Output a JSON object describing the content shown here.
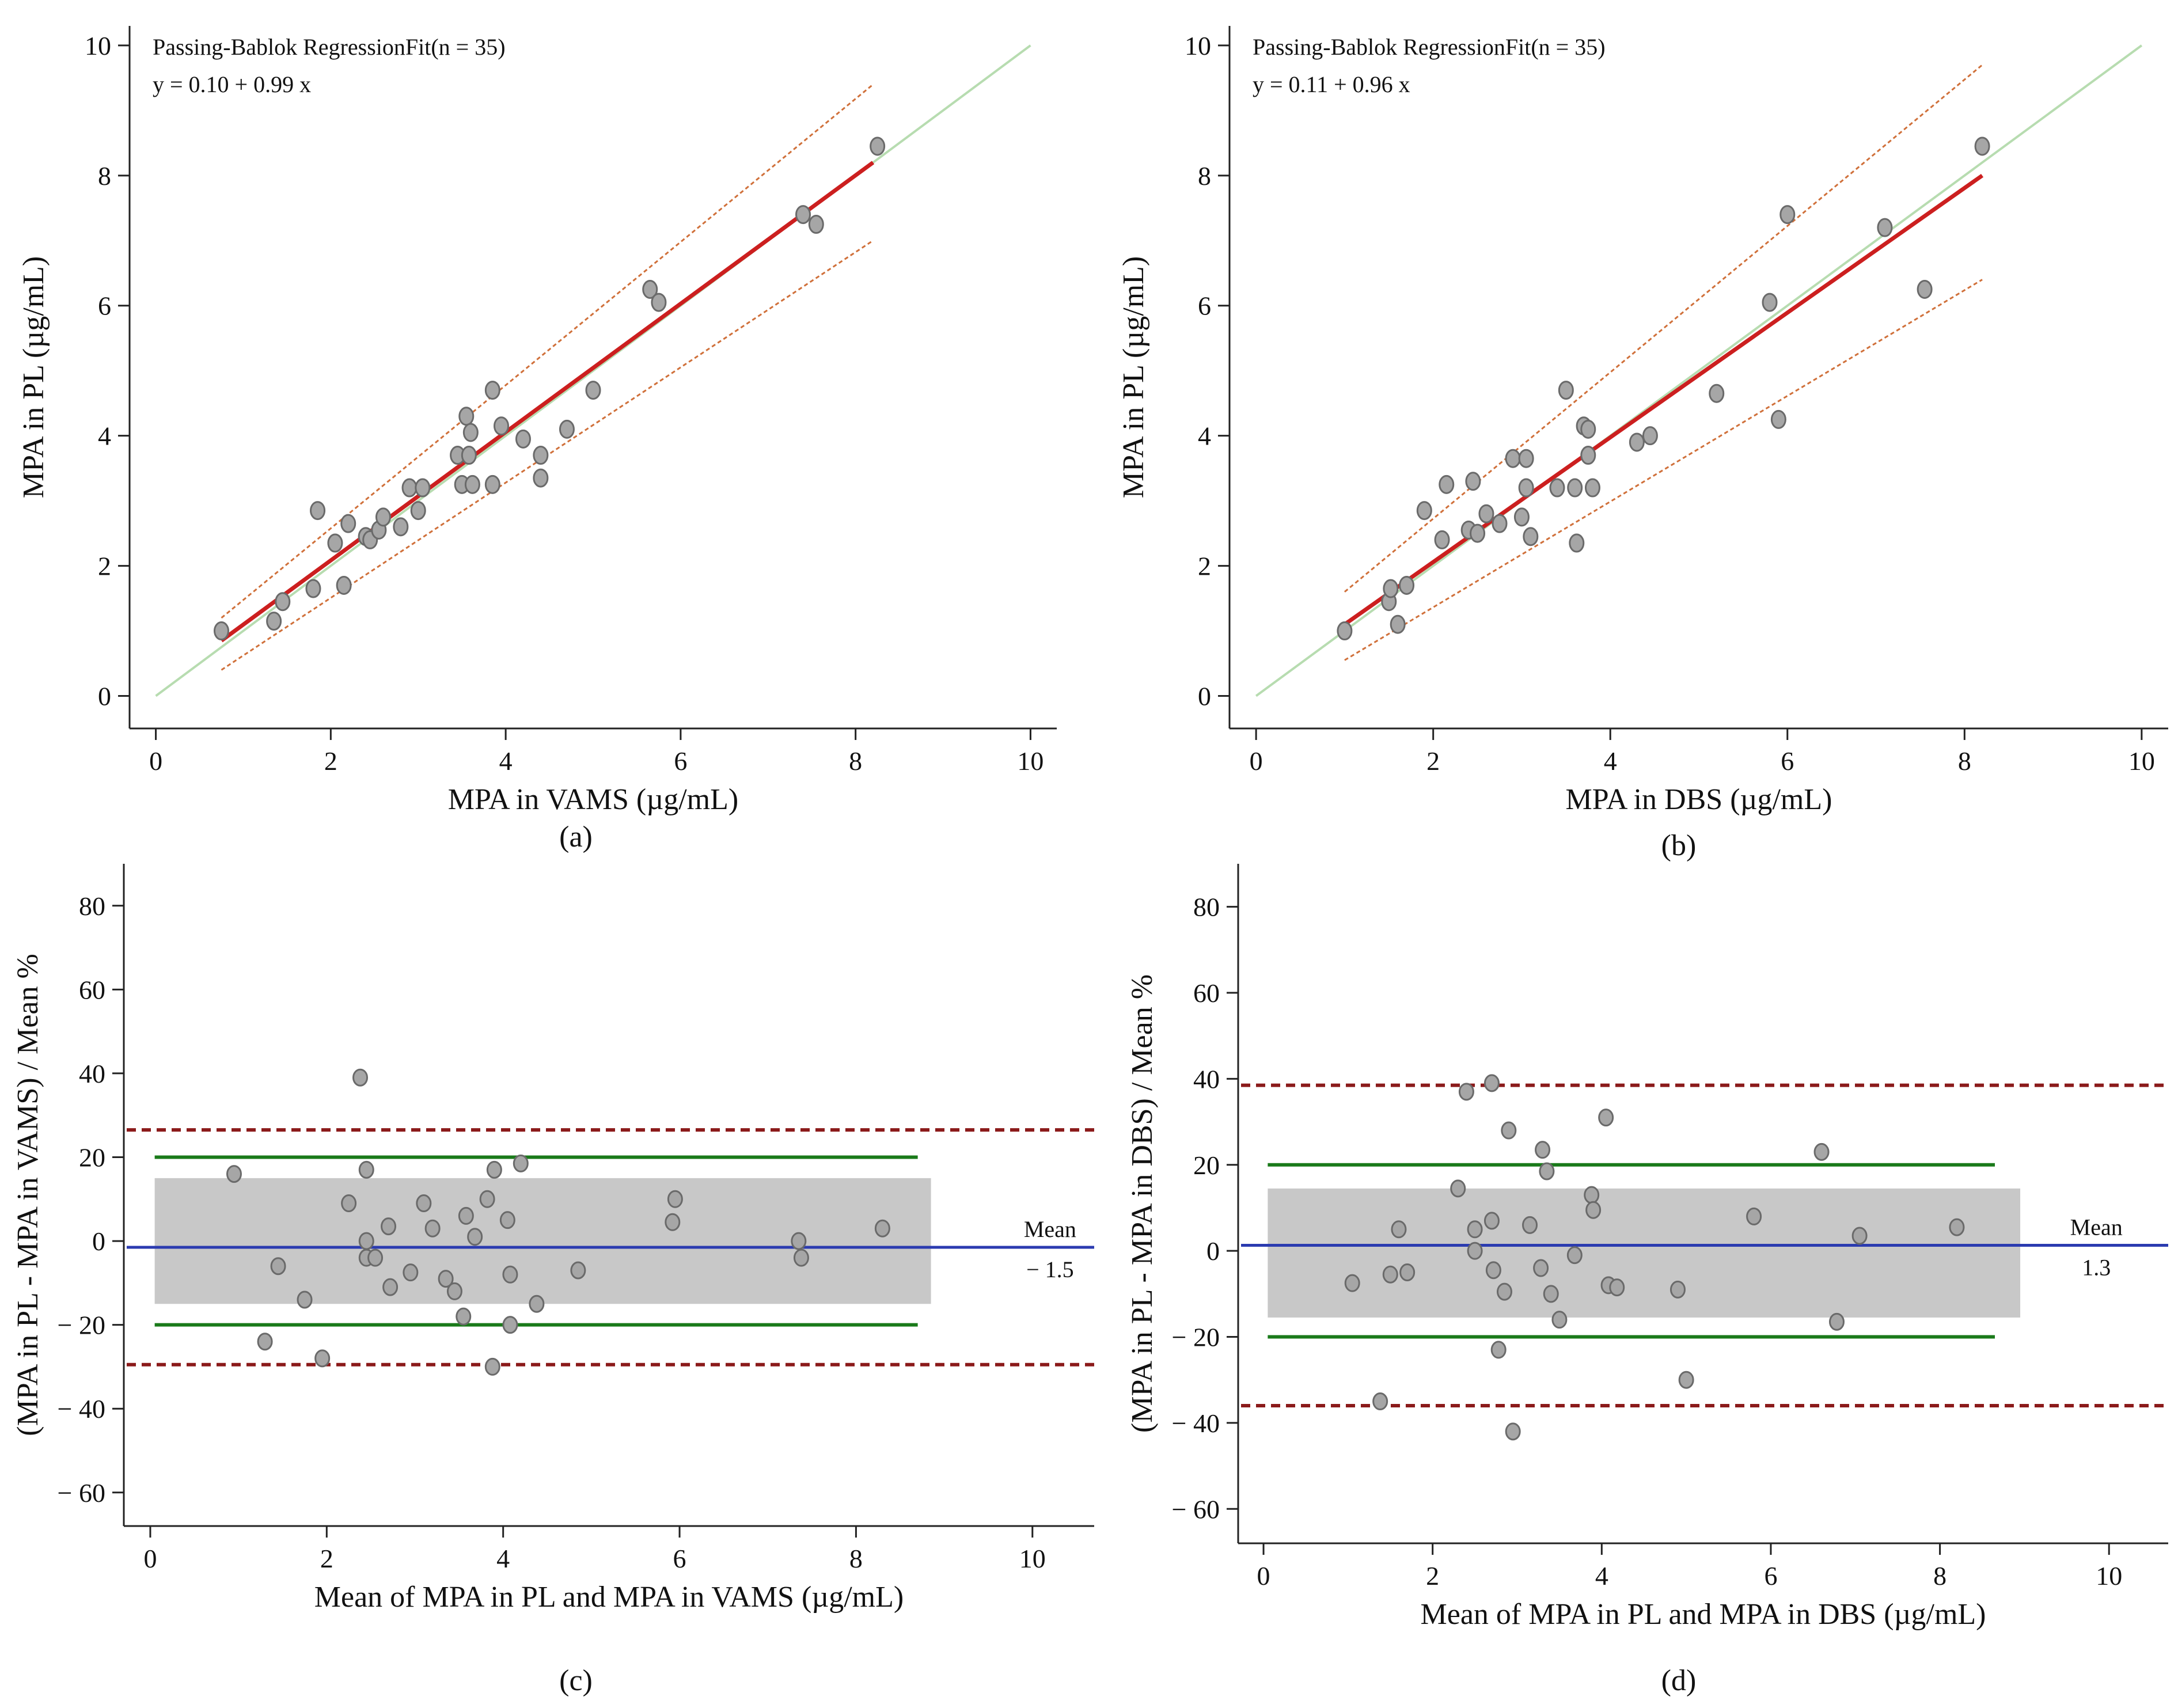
{
  "colors": {
    "identity": "#b7dcb0",
    "fit": "#cc1f1f",
    "ci": "#d0703a",
    "point_fill": "#a6a6a6",
    "point_stroke": "#6a6a6a",
    "shade": "#c8c8c8",
    "mean_line": "#2b3bb0",
    "green_line": "#1a7a1a",
    "loa_line": "#8b1a1a",
    "axis": "#222222"
  },
  "chart_data": [
    {
      "type": "scatter",
      "panel_label": "(a)",
      "annotation": [
        "Passing-Bablok RegressionFit(n = 35)",
        "y = 0.10   +  0.99   x"
      ],
      "xlabel": "MPA in  VAMS (µg/mL)",
      "ylabel": "MPA in  PL (µg/mL)",
      "xlim": [
        -0.3,
        10.3
      ],
      "ylim": [
        -0.5,
        10.3
      ],
      "xticks": [
        0,
        2,
        4,
        6,
        8,
        10
      ],
      "yticks": [
        0,
        2,
        4,
        6,
        8,
        10
      ],
      "xtick_labels": [
        "0",
        "2",
        "4",
        "6",
        "8",
        "10"
      ],
      "ytick_labels": [
        "0",
        "2",
        "4",
        "6",
        "8",
        "10"
      ],
      "identity_line": [
        [
          0,
          0
        ],
        [
          10,
          10
        ]
      ],
      "fit_line": [
        [
          0.75,
          0.85
        ],
        [
          8.2,
          8.2
        ]
      ],
      "ci_upper": [
        [
          0.75,
          1.2
        ],
        [
          8.2,
          9.4
        ]
      ],
      "ci_lower": [
        [
          0.75,
          0.4
        ],
        [
          8.2,
          7.0
        ]
      ],
      "points": [
        [
          0.75,
          1.0
        ],
        [
          1.35,
          1.15
        ],
        [
          1.45,
          1.45
        ],
        [
          1.8,
          1.65
        ],
        [
          1.85,
          2.85
        ],
        [
          2.05,
          2.35
        ],
        [
          2.15,
          1.7
        ],
        [
          2.2,
          2.65
        ],
        [
          2.4,
          2.45
        ],
        [
          2.45,
          2.4
        ],
        [
          2.55,
          2.55
        ],
        [
          2.6,
          2.75
        ],
        [
          2.8,
          2.6
        ],
        [
          2.9,
          3.2
        ],
        [
          3.0,
          2.85
        ],
        [
          3.05,
          3.2
        ],
        [
          3.45,
          3.7
        ],
        [
          3.5,
          3.25
        ],
        [
          3.55,
          4.3
        ],
        [
          3.58,
          3.7
        ],
        [
          3.6,
          4.05
        ],
        [
          3.62,
          3.25
        ],
        [
          3.85,
          4.7
        ],
        [
          3.85,
          3.25
        ],
        [
          3.95,
          4.15
        ],
        [
          4.2,
          3.95
        ],
        [
          4.4,
          3.7
        ],
        [
          4.4,
          3.35
        ],
        [
          4.7,
          4.1
        ],
        [
          5.0,
          4.7
        ],
        [
          5.65,
          6.25
        ],
        [
          5.75,
          6.05
        ],
        [
          7.4,
          7.4
        ],
        [
          7.55,
          7.25
        ],
        [
          8.25,
          8.45
        ]
      ]
    },
    {
      "type": "scatter",
      "panel_label": "(b)",
      "annotation": [
        "Passing-Bablok RegressionFit(n = 35)",
        "y = 0.11   +  0.96   x"
      ],
      "xlabel": "MPA in  DBS (µg/mL)",
      "ylabel": "MPA in  PL (µg/mL)",
      "xlim": [
        -0.3,
        10.3
      ],
      "ylim": [
        -0.5,
        10.3
      ],
      "xticks": [
        0,
        2,
        4,
        6,
        8,
        10
      ],
      "yticks": [
        0,
        2,
        4,
        6,
        8,
        10
      ],
      "xtick_labels": [
        "0",
        "2",
        "4",
        "6",
        "8",
        "10"
      ],
      "ytick_labels": [
        "0",
        "2",
        "4",
        "6",
        "8",
        "10"
      ],
      "identity_line": [
        [
          0,
          0
        ],
        [
          10,
          10
        ]
      ],
      "fit_line": [
        [
          1.0,
          1.1
        ],
        [
          8.2,
          8.0
        ]
      ],
      "ci_upper": [
        [
          1.0,
          1.6
        ],
        [
          8.2,
          9.7
        ]
      ],
      "ci_lower": [
        [
          1.0,
          0.55
        ],
        [
          8.2,
          6.4
        ]
      ],
      "points": [
        [
          1.0,
          1.0
        ],
        [
          1.5,
          1.45
        ],
        [
          1.52,
          1.65
        ],
        [
          1.6,
          1.1
        ],
        [
          1.7,
          1.7
        ],
        [
          1.9,
          2.85
        ],
        [
          2.1,
          2.4
        ],
        [
          2.15,
          3.25
        ],
        [
          2.4,
          2.55
        ],
        [
          2.45,
          3.3
        ],
        [
          2.5,
          2.5
        ],
        [
          2.6,
          2.8
        ],
        [
          2.75,
          2.65
        ],
        [
          2.9,
          3.65
        ],
        [
          3.0,
          2.75
        ],
        [
          3.05,
          3.65
        ],
        [
          3.05,
          3.2
        ],
        [
          3.1,
          2.45
        ],
        [
          3.4,
          3.2
        ],
        [
          3.5,
          4.7
        ],
        [
          3.6,
          3.2
        ],
        [
          3.62,
          2.35
        ],
        [
          3.7,
          4.15
        ],
        [
          3.75,
          4.1
        ],
        [
          3.75,
          3.7
        ],
        [
          3.8,
          3.2
        ],
        [
          4.3,
          3.9
        ],
        [
          4.45,
          4.0
        ],
        [
          5.2,
          4.65
        ],
        [
          5.8,
          6.05
        ],
        [
          5.9,
          4.25
        ],
        [
          6.0,
          7.4
        ],
        [
          7.1,
          7.2
        ],
        [
          7.55,
          6.25
        ],
        [
          8.2,
          8.45
        ]
      ]
    },
    {
      "type": "scatter",
      "panel_label": "(c)",
      "xlabel": "Mean of MPA in PL and MPA in VAMS (µg/mL)",
      "ylabel": "(MPA in  PL - MPA in VAMS) / Mean %",
      "xlim": [
        -0.3,
        10.7
      ],
      "ylim": [
        -68,
        90
      ],
      "xticks": [
        0,
        2,
        4,
        6,
        8,
        10
      ],
      "yticks": [
        80,
        60,
        40,
        20,
        0,
        -20,
        -40,
        -60
      ],
      "xtick_labels": [
        "0",
        "2",
        "4",
        "6",
        "8",
        "10"
      ],
      "ytick_labels": [
        "80",
        "60",
        "40",
        "20",
        "0",
        "− 20",
        "− 40",
        "− 60"
      ],
      "mean_value": -1.5,
      "mean_label": "Mean",
      "mean_value_label": "− 1.5",
      "shaded_band": {
        "x": [
          0.05,
          8.85
        ],
        "y": [
          -15,
          15
        ]
      },
      "green_lines": {
        "x": [
          0.05,
          8.7
        ],
        "y": [
          20,
          -20
        ]
      },
      "loa_lines": [
        26.5,
        -29.5
      ],
      "points": [
        [
          0.95,
          16
        ],
        [
          1.45,
          -6
        ],
        [
          1.75,
          -14
        ],
        [
          1.95,
          -28
        ],
        [
          1.3,
          -24
        ],
        [
          2.25,
          9
        ],
        [
          2.38,
          39
        ],
        [
          2.45,
          17
        ],
        [
          2.45,
          0
        ],
        [
          2.45,
          -4
        ],
        [
          2.55,
          -4
        ],
        [
          2.7,
          3.5
        ],
        [
          2.72,
          -11
        ],
        [
          2.95,
          -7.5
        ],
        [
          3.1,
          9
        ],
        [
          3.2,
          3
        ],
        [
          3.35,
          -9
        ],
        [
          3.45,
          -12
        ],
        [
          3.55,
          -18
        ],
        [
          3.58,
          6
        ],
        [
          3.68,
          1
        ],
        [
          3.82,
          10
        ],
        [
          3.9,
          17
        ],
        [
          3.88,
          -30
        ],
        [
          4.05,
          5
        ],
        [
          4.08,
          -8
        ],
        [
          4.08,
          -20
        ],
        [
          4.2,
          18.5
        ],
        [
          4.38,
          -15
        ],
        [
          4.85,
          -7
        ],
        [
          5.95,
          10
        ],
        [
          5.92,
          4.5
        ],
        [
          7.35,
          0
        ],
        [
          7.38,
          -4
        ],
        [
          8.3,
          3
        ]
      ]
    },
    {
      "type": "scatter",
      "panel_label": "(d)",
      "xlabel": "Mean of MPA in PL and MPA in DBS (µg/mL)",
      "ylabel": "(MPA in  PL - MPA in DBS) / Mean %",
      "xlim": [
        -0.3,
        10.7
      ],
      "ylim": [
        -68,
        90
      ],
      "xticks": [
        0,
        2,
        4,
        6,
        8,
        10
      ],
      "yticks": [
        80,
        60,
        40,
        20,
        0,
        -20,
        -40,
        -60
      ],
      "xtick_labels": [
        "0",
        "2",
        "4",
        "6",
        "8",
        "10"
      ],
      "ytick_labels": [
        "80",
        "60",
        "40",
        "20",
        "0",
        "− 20",
        "− 40",
        "− 60"
      ],
      "mean_value": 1.3,
      "mean_label": "Mean",
      "mean_value_label": "1.3",
      "shaded_band": {
        "x": [
          0.05,
          8.95
        ],
        "y": [
          -15.5,
          14.5
        ]
      },
      "green_lines": {
        "x": [
          0.05,
          8.65
        ],
        "y": [
          20,
          -20
        ]
      },
      "loa_lines": [
        38.5,
        -36
      ],
      "points": [
        [
          1.05,
          -7.5
        ],
        [
          1.38,
          -35
        ],
        [
          1.5,
          -5.5
        ],
        [
          1.6,
          5
        ],
        [
          1.7,
          -5
        ],
        [
          2.3,
          14.5
        ],
        [
          2.4,
          37
        ],
        [
          2.5,
          5
        ],
        [
          2.5,
          0
        ],
        [
          2.7,
          39
        ],
        [
          2.7,
          7
        ],
        [
          2.72,
          -4.5
        ],
        [
          2.78,
          -23
        ],
        [
          2.85,
          -9.5
        ],
        [
          2.9,
          28
        ],
        [
          2.95,
          -42
        ],
        [
          3.15,
          6
        ],
        [
          3.28,
          -4
        ],
        [
          3.3,
          23.5
        ],
        [
          3.35,
          18.5
        ],
        [
          3.4,
          -10
        ],
        [
          3.5,
          -16
        ],
        [
          3.68,
          -1
        ],
        [
          3.88,
          13
        ],
        [
          3.9,
          9.5
        ],
        [
          4.05,
          31
        ],
        [
          4.08,
          -8
        ],
        [
          4.18,
          -8.5
        ],
        [
          4.9,
          -9
        ],
        [
          5.0,
          -30
        ],
        [
          5.8,
          8
        ],
        [
          6.6,
          23
        ],
        [
          6.78,
          -16.5
        ],
        [
          7.05,
          3.5
        ],
        [
          8.2,
          5.5
        ]
      ]
    }
  ]
}
